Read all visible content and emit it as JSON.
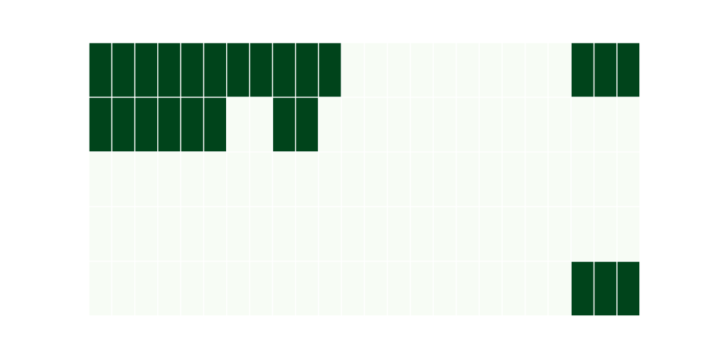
{
  "chart_data": {
    "type": "heatmap",
    "title": "",
    "xlabel": "",
    "ylabel": "",
    "axes_visible": false,
    "grid_lines": "white",
    "n_rows": 5,
    "n_cols": 24,
    "values": [
      [
        1,
        1,
        1,
        1,
        1,
        1,
        1,
        1,
        1,
        1,
        1,
        0,
        0,
        0,
        0,
        0,
        0,
        0,
        0,
        0,
        0,
        1,
        1,
        1
      ],
      [
        1,
        1,
        1,
        1,
        1,
        1,
        0,
        0,
        1,
        1,
        0,
        0,
        0,
        0,
        0,
        0,
        0,
        0,
        0,
        0,
        0,
        0,
        0,
        0
      ],
      [
        0,
        0,
        0,
        0,
        0,
        0,
        0,
        0,
        0,
        0,
        0,
        0,
        0,
        0,
        0,
        0,
        0,
        0,
        0,
        0,
        0,
        0,
        0,
        0
      ],
      [
        0,
        0,
        0,
        0,
        0,
        0,
        0,
        0,
        0,
        0,
        0,
        0,
        0,
        0,
        0,
        0,
        0,
        0,
        0,
        0,
        0,
        0,
        0,
        0
      ],
      [
        0,
        0,
        0,
        0,
        0,
        0,
        0,
        0,
        0,
        0,
        0,
        0,
        0,
        0,
        0,
        0,
        0,
        0,
        0,
        0,
        0,
        1,
        1,
        1
      ]
    ],
    "colormap": {
      "low": "#f7fcf5",
      "high": "#00441b"
    }
  }
}
